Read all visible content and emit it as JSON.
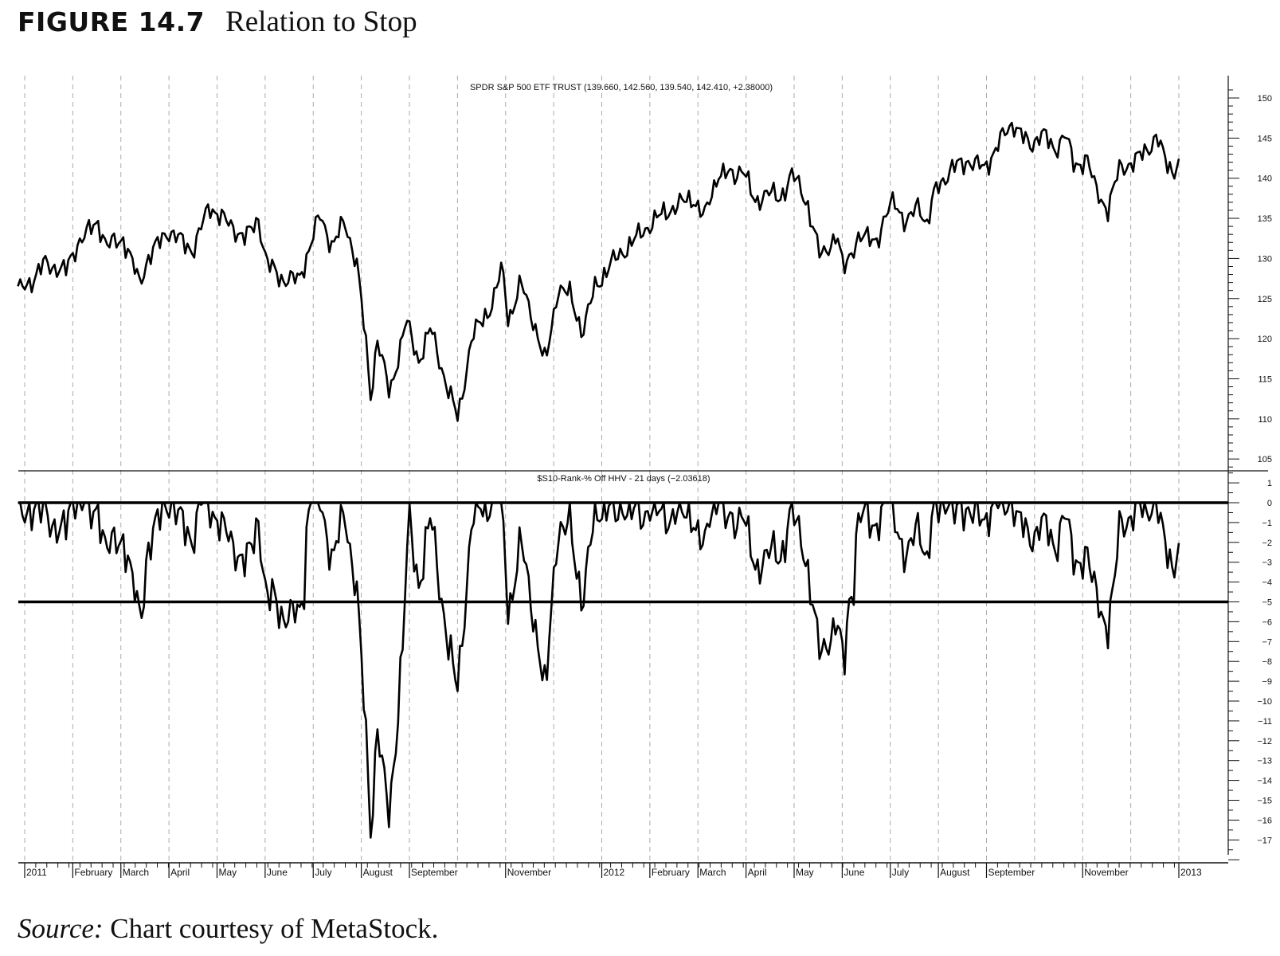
{
  "figure": {
    "number": "FIGURE 14.7",
    "title": "Relation to Stop"
  },
  "source": {
    "label": "Source:",
    "text": " Chart courtesy of MetaStock."
  },
  "chart_data": [
    {
      "type": "line",
      "title": "SPDR S&P 500 ETF TRUST (139.660, 142.560, 139.540, 142.410, +2.38000)",
      "x_unit": "months since Jan 1 2011",
      "ylim": [
        103,
        151
      ],
      "y_ticks": [
        105,
        110,
        115,
        120,
        125,
        130,
        135,
        140,
        145,
        150
      ],
      "grid": "vertical dashed monthly",
      "series": [
        {
          "name": "SPY close",
          "x": [
            -0.14,
            0.17,
            0.42,
            0.85,
            1.11,
            1.53,
            1.7,
            2.05,
            2.39,
            2.56,
            2.98,
            3.5,
            3.84,
            4.18,
            4.6,
            4.86,
            5.03,
            5.37,
            5.71,
            6.14,
            6.4,
            6.65,
            6.91,
            7.08,
            7.2,
            7.33,
            7.59,
            7.93,
            8.19,
            8.44,
            8.78,
            9.01,
            9.3,
            9.72,
            9.93,
            10.06,
            10.32,
            10.58,
            10.83,
            11.09,
            11.34,
            11.6,
            11.86,
            12.2,
            12.71,
            13.14,
            13.56,
            13.9,
            14.13,
            14.42,
            14.76,
            14.93,
            15.18,
            15.44,
            15.69,
            15.95,
            16.29,
            16.55,
            16.89,
            17.02,
            17.31,
            17.74,
            18.08,
            18.34,
            18.59,
            18.76,
            18.94,
            19.28,
            19.62,
            19.96,
            20.3,
            20.56,
            20.9,
            21.15,
            21.41,
            21.63,
            21.83,
            22.09,
            22.26,
            22.52,
            22.77,
            23.11,
            23.37,
            23.54,
            23.71,
            23.91,
            24.0
          ],
          "y": [
            125.9,
            127.4,
            129.4,
            128.4,
            132,
            134.6,
            131.5,
            132.5,
            126.9,
            130,
            133.5,
            131,
            136.6,
            134.6,
            132.5,
            135,
            129.4,
            127.4,
            127.4,
            135.4,
            131.5,
            134.6,
            129.4,
            120.2,
            112.6,
            120.2,
            113,
            122.3,
            117.2,
            121.3,
            114.1,
            110,
            120.2,
            124.3,
            128.9,
            122.3,
            126.9,
            122.3,
            116.7,
            126.4,
            125.4,
            120.8,
            126.4,
            129.4,
            132.5,
            135,
            136.6,
            137.6,
            135,
            140.7,
            140.2,
            141.7,
            136.6,
            138.6,
            137.1,
            140.7,
            136.6,
            130,
            133.1,
            128.4,
            132.5,
            132.5,
            137.6,
            134,
            137.1,
            134,
            138.6,
            141.2,
            142.2,
            141.2,
            144.8,
            147,
            143.8,
            145.9,
            143.2,
            145.9,
            141.2,
            142.7,
            138.6,
            136.1,
            141.2,
            142.2,
            143.8,
            145.3,
            142.2,
            140.7,
            142.41
          ]
        }
      ]
    },
    {
      "type": "line",
      "title": "$S10-Rank-% Off HHV - 21 days (−2.03618)",
      "derived_from": "SPY close, % below 21-day highest high",
      "lookback_days": 21,
      "last_value": -2.03618,
      "ylim": [
        -18,
        1.5
      ],
      "y_ticks": [
        1,
        0,
        -1,
        -2,
        -3,
        -4,
        -5,
        -6,
        -7,
        -8,
        -9,
        -10,
        -11,
        -12,
        -13,
        -14,
        -15,
        -16,
        -17
      ],
      "reference_lines": [
        0,
        -5
      ]
    }
  ],
  "x_axis": {
    "labels": [
      "2011",
      "February",
      "March",
      "April",
      "May",
      "June",
      "July",
      "August",
      "September",
      "",
      "November",
      "",
      "2012",
      "February",
      "March",
      "April",
      "May",
      "June",
      "July",
      "August",
      "September",
      "",
      "November",
      "",
      "2013"
    ]
  }
}
